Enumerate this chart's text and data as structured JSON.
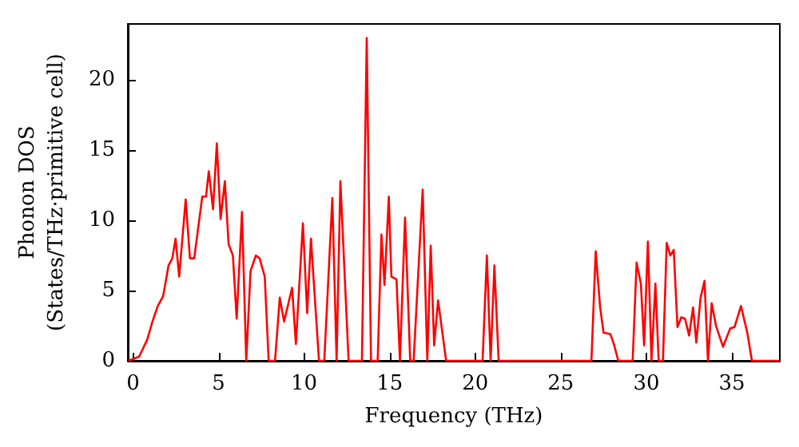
{
  "chart_data": {
    "type": "line",
    "xlabel": "Frequency (THz)",
    "ylabel": "Phonon DOS\n(States/THz·primitive cell)",
    "x": [
      -0.26,
      0.36,
      0.83,
      1.14,
      1.45,
      1.76,
      2.08,
      2.3,
      2.49,
      2.7,
      3.08,
      3.33,
      3.58,
      4.05,
      4.27,
      4.43,
      4.68,
      4.9,
      5.12,
      5.37,
      5.59,
      5.84,
      6.06,
      6.37,
      6.62,
      6.87,
      7.18,
      7.4,
      7.7,
      7.93,
      8.3,
      8.58,
      8.83,
      9.3,
      9.52,
      9.93,
      10.18,
      10.4,
      10.87,
      11.18,
      11.65,
      11.9,
      12.12,
      12.6,
      13.38,
      13.66,
      13.91,
      14.3,
      14.52,
      14.7,
      14.95,
      15.1,
      15.4,
      15.6,
      15.9,
      16.2,
      16.4,
      16.93,
      17.2,
      17.4,
      17.6,
      17.83,
      18.3,
      20.43,
      20.68,
      20.9,
      21.12,
      21.37,
      26.79,
      27.04,
      27.3,
      27.5,
      27.9,
      28.1,
      28.36,
      29.2,
      29.43,
      29.68,
      29.87,
      30.09,
      30.3,
      30.53,
      30.72,
      30.97,
      31.19,
      31.4,
      31.6,
      31.82,
      32.04,
      32.26,
      32.5,
      32.73,
      32.92,
      33.17,
      33.4,
      33.6,
      33.82,
      34.07,
      34.48,
      34.9,
      35.15,
      35.53,
      35.9,
      36.17,
      37.8
    ],
    "series": [
      {
        "color": "#ff0000",
        "values": [
          0,
          0.3,
          1.5,
          2.8,
          3.9,
          4.6,
          6.8,
          7.3,
          8.7,
          6.0,
          11.5,
          7.3,
          7.3,
          11.7,
          11.7,
          13.5,
          10.8,
          15.5,
          10.1,
          12.8,
          8.3,
          7.5,
          3.0,
          10.6,
          0,
          6.4,
          7.5,
          7.3,
          6.0,
          0,
          0,
          4.5,
          2.8,
          5.2,
          1.2,
          9.8,
          3.4,
          8.7,
          0,
          0,
          11.6,
          0,
          12.8,
          0,
          0,
          23.0,
          0,
          0,
          9.0,
          5.4,
          11.7,
          6.0,
          5.8,
          0,
          10.2,
          0,
          0,
          12.2,
          0,
          8.2,
          1.1,
          4.3,
          0,
          0,
          7.5,
          0,
          6.8,
          0,
          0,
          7.8,
          3.8,
          2.0,
          1.9,
          1.2,
          0,
          0,
          7.0,
          5.5,
          1.1,
          8.5,
          0,
          5.5,
          0,
          0,
          8.4,
          7.5,
          7.9,
          2.4,
          3.1,
          3.0,
          1.8,
          3.8,
          1.3,
          4.5,
          5.7,
          0,
          4.1,
          2.5,
          1.0,
          2.3,
          2.4,
          3.9,
          2.0,
          0,
          0
        ]
      }
    ],
    "xlim": [
      -0.3,
      37.8
    ],
    "ylim": [
      0,
      24
    ],
    "xticks": [
      0,
      5,
      10,
      15,
      20,
      25,
      30,
      35
    ],
    "yticks": [
      0,
      5,
      10,
      15,
      20
    ],
    "grid": false,
    "marker": "none",
    "line_style": "solid"
  }
}
